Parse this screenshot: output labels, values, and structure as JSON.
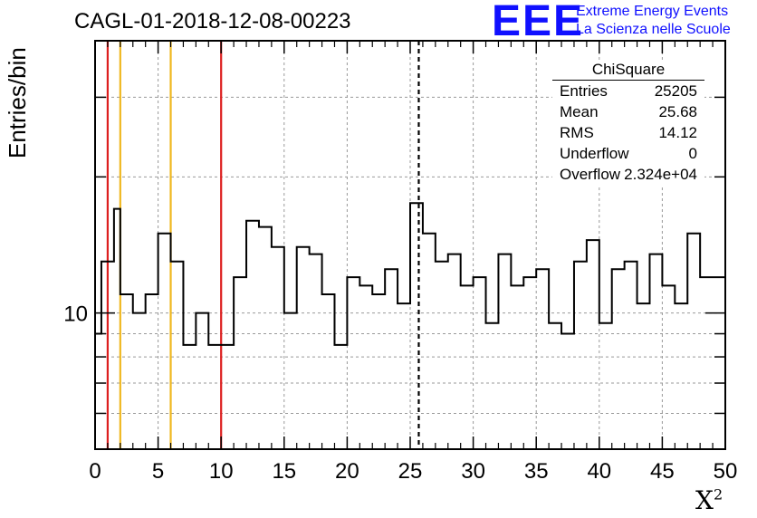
{
  "chart_data": {
    "type": "histogram",
    "title": "CAGL-01-2018-12-08-00223",
    "xlabel": "X",
    "xlabel_sup": "2",
    "ylabel": "Entries/bin",
    "xlim": [
      0,
      50
    ],
    "ylim": [
      5,
      40
    ],
    "yscale": "log",
    "grid": true,
    "x_ticks": [
      "0",
      "5",
      "10",
      "15",
      "20",
      "25",
      "30",
      "35",
      "40",
      "45",
      "50"
    ],
    "y_ticks": [
      {
        "value": 10,
        "label": "10"
      }
    ],
    "bin_width": 0.5,
    "values": [
      9,
      13,
      13,
      17,
      11,
      11,
      10,
      10,
      11,
      11,
      15,
      15,
      13,
      13,
      8.5,
      8.5,
      10,
      10,
      8.5,
      8.5,
      8.5,
      8.5,
      12,
      12,
      16,
      16,
      15.5,
      15.5,
      14,
      14,
      10,
      10,
      14,
      14,
      13.5,
      13.5,
      11,
      11,
      8.5,
      8.5,
      12,
      12,
      11.5,
      11.5,
      11,
      11,
      12.5,
      12.5,
      10.5,
      10.5,
      17.5,
      17.5,
      15,
      15,
      13,
      13,
      13.5,
      13.5,
      11.5,
      11.5,
      12,
      12,
      9.5,
      9.5,
      13.5,
      13.5,
      11.5,
      11.5,
      12,
      12,
      12.5,
      12.5,
      9.5,
      9.5,
      9,
      9,
      13,
      13,
      14.5,
      14.5,
      9.5,
      9.5,
      12.5,
      12.5,
      13,
      13,
      10.5,
      10.5,
      13.5,
      13.5,
      11.5,
      11.5,
      10.5,
      10.5,
      15,
      15,
      12,
      12,
      12,
      12
    ],
    "vlines": [
      {
        "x": 1,
        "color": "#dd2020",
        "style": "solid"
      },
      {
        "x": 2,
        "color": "#f0b820",
        "style": "solid"
      },
      {
        "x": 6,
        "color": "#f0b820",
        "style": "solid"
      },
      {
        "x": 10,
        "color": "#dd2020",
        "style": "solid"
      },
      {
        "x": 25.68,
        "color": "#000000",
        "style": "dashed"
      }
    ],
    "stats": {
      "title": "ChiSquare",
      "rows": [
        {
          "label": "Entries",
          "value": "25205"
        },
        {
          "label": "Mean",
          "value": "25.68"
        },
        {
          "label": "RMS",
          "value": "14.12"
        },
        {
          "label": "Underflow",
          "value": "0"
        },
        {
          "label": "Overflow",
          "value": "2.324e+04"
        }
      ]
    }
  },
  "logo": {
    "text": "EEE",
    "line1": "Extreme Energy Events",
    "line2": "La Scienza nelle Scuole",
    "color": "#1010ff"
  }
}
